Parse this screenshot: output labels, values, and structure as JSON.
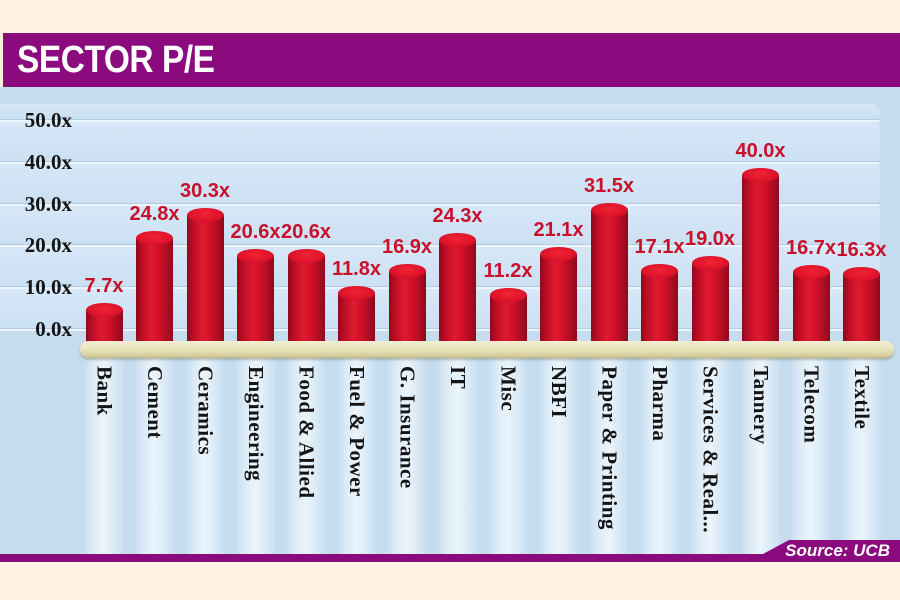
{
  "header": {
    "title": "SECTOR P/E"
  },
  "footer": {
    "source_label": "Source: UCB"
  },
  "colors": {
    "accent_purple": "#8b0a7d",
    "bar_red": "#c8102a",
    "value_label_red": "#c9102b",
    "background_cream": "#fdf2e2",
    "plot_blue": "#c5dcef",
    "plinth_cream": "#e9e4bd",
    "label_black": "#141414"
  },
  "chart_data": {
    "type": "bar",
    "title": "SECTOR P/E",
    "source": "Source: UCB",
    "categories": [
      "Bank",
      "Cement",
      "Ceramics",
      "Engineering",
      "Food & Allied",
      "Fuel & Power",
      "G. Insurance",
      "IT",
      "Misc",
      "NBFI",
      "Paper & Printing",
      "Pharma",
      "Services & Real...",
      "Tannery",
      "Telecom",
      "Textile"
    ],
    "values": [
      7.7,
      24.8,
      30.3,
      20.6,
      20.6,
      11.8,
      16.9,
      24.3,
      11.2,
      21.1,
      31.5,
      17.1,
      19.0,
      40.0,
      16.7,
      16.3
    ],
    "value_labels": [
      "7.7x",
      "24.8x",
      "30.3x",
      "20.6x",
      "20.6x",
      "11.8x",
      "16.9x",
      "24.3x",
      "11.2x",
      "21.1x",
      "31.5x",
      "17.1x",
      "19.0x",
      "40.0x",
      "16.7x",
      "16.3x"
    ],
    "y_ticks": [
      "50.0x",
      "40.0x",
      "30.0x",
      "20.0x",
      "10.0x",
      "0.0x"
    ],
    "ylim": [
      0,
      50
    ],
    "unit_suffix": "x",
    "grid": true,
    "legend": false,
    "xlabel": "",
    "ylabel": "",
    "bar_style": "3d-cylinder",
    "x_label_rotation_deg": 90
  }
}
